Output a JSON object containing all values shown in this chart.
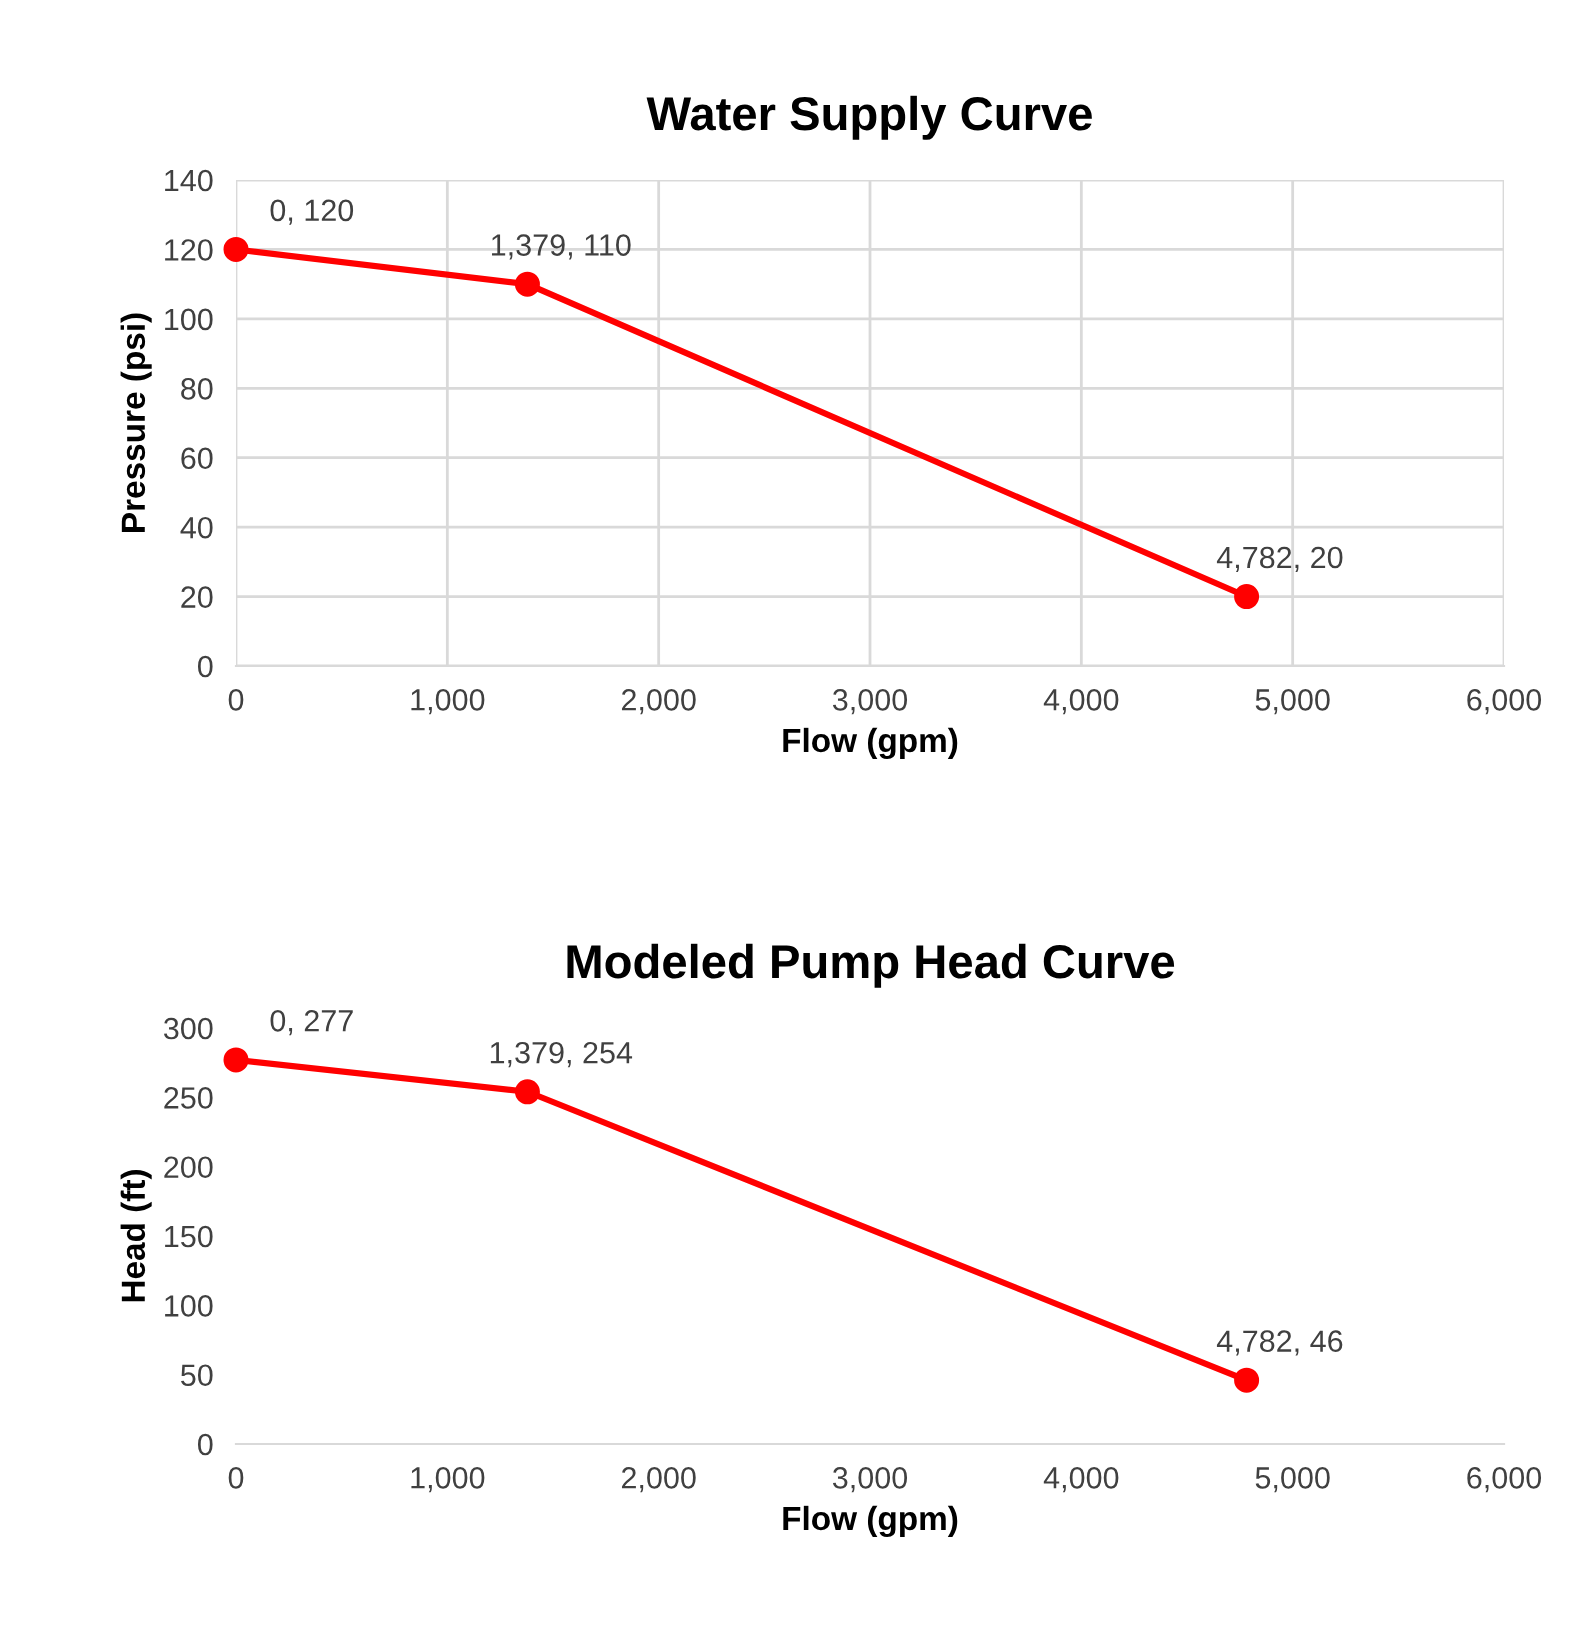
{
  "chart_data": [
    {
      "type": "line",
      "title": "Water Supply Curve",
      "xlabel": "Flow (gpm)",
      "ylabel": "Pressure (psi)",
      "series": [
        {
          "color": "#ff0000",
          "x": [
            0,
            1379,
            4782
          ],
          "values": [
            120,
            110,
            20
          ]
        }
      ],
      "marker": "circle",
      "line_style": "solid",
      "grid": true,
      "legend": false,
      "xlim": [
        0,
        6000
      ],
      "xticks": [
        {
          "value": 0,
          "label": "0"
        },
        {
          "value": 1000,
          "label": "1,000"
        },
        {
          "value": 2000,
          "label": "2,000"
        },
        {
          "value": 3000,
          "label": "3,000"
        },
        {
          "value": 4000,
          "label": "4,000"
        },
        {
          "value": 5000,
          "label": "5,000"
        },
        {
          "value": 6000,
          "label": "6,000"
        }
      ],
      "ylim": [
        0,
        140
      ],
      "yticks": [
        0,
        20,
        40,
        60,
        80,
        100,
        120,
        140
      ],
      "annotations": [
        {
          "text": "0, 120",
          "x": 0,
          "y": 120
        },
        {
          "text": "1,379, 110",
          "x": 1379,
          "y": 110
        },
        {
          "text": "4,782, 20",
          "x": 4782,
          "y": 20
        }
      ]
    },
    {
      "type": "line",
      "title": "Modeled Pump Head Curve",
      "xlabel": "Flow (gpm)",
      "ylabel": "Head (ft)",
      "series": [
        {
          "color": "#ff0000",
          "x": [
            0,
            1379,
            4782
          ],
          "values": [
            277,
            254,
            46
          ]
        }
      ],
      "marker": "circle",
      "line_style": "solid",
      "grid": false,
      "legend": false,
      "xlim": [
        0,
        6000
      ],
      "xticks": [
        {
          "value": 0,
          "label": "0"
        },
        {
          "value": 1000,
          "label": "1,000"
        },
        {
          "value": 2000,
          "label": "2,000"
        },
        {
          "value": 3000,
          "label": "3,000"
        },
        {
          "value": 4000,
          "label": "4,000"
        },
        {
          "value": 5000,
          "label": "5,000"
        },
        {
          "value": 6000,
          "label": "6,000"
        }
      ],
      "ylim": [
        0,
        300
      ],
      "yticks": [
        0,
        50,
        100,
        150,
        200,
        250,
        300
      ],
      "annotations": [
        {
          "text": "0, 277",
          "x": 0,
          "y": 277
        },
        {
          "text": "1,379, 254",
          "x": 1379,
          "y": 254
        },
        {
          "text": "4,782, 46",
          "x": 4782,
          "y": 46
        }
      ]
    }
  ]
}
